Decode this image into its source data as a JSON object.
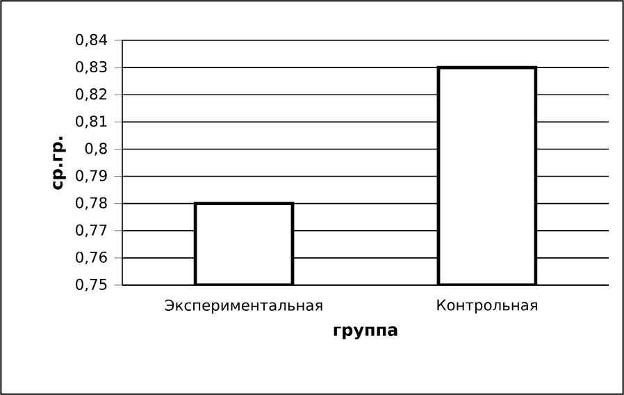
{
  "chart_data": {
    "type": "bar",
    "xlabel": "группа",
    "ylabel": "ср.гр.",
    "categories": [
      "Экспериментальная",
      "Контрольная"
    ],
    "series": [
      {
        "color": "#ffffff",
        "values": [
          0.78,
          0.83
        ]
      }
    ],
    "ylim": [
      0.75,
      0.84
    ],
    "yticks": [
      {
        "value": 0.75,
        "label": "0,75"
      },
      {
        "value": 0.76,
        "label": "0,76"
      },
      {
        "value": 0.77,
        "label": "0,77"
      },
      {
        "value": 0.78,
        "label": "0,78"
      },
      {
        "value": 0.79,
        "label": "0,79"
      },
      {
        "value": 0.8,
        "label": "0,8"
      },
      {
        "value": 0.81,
        "label": "0,81"
      },
      {
        "value": 0.82,
        "label": "0,82"
      },
      {
        "value": 0.83,
        "label": "0,83"
      },
      {
        "value": 0.84,
        "label": "0,84"
      }
    ],
    "grid": "y"
  }
}
